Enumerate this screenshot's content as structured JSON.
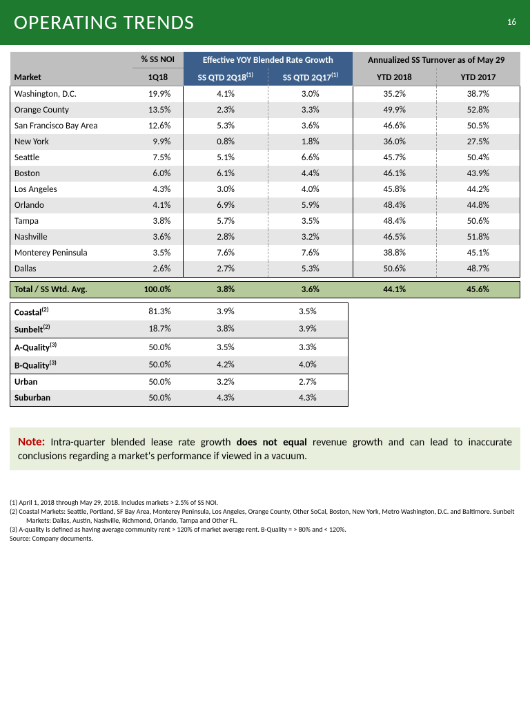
{
  "header": {
    "title": "OPERATING TRENDS",
    "page": "16"
  },
  "table": {
    "headers": {
      "market": "Market",
      "ssnoi": "% SS NOI",
      "ssnoi_sub": "1Q18",
      "blended_group": "Effective YOY Blended Rate Growth",
      "q2_18": "SS QTD 2Q18",
      "q2_17": "SS QTD 2Q17",
      "turnover_group": "Annualized SS Turnover as of May 29",
      "ytd18": "YTD 2018",
      "ytd17": "YTD 2017",
      "sup1": "(1)"
    },
    "rows": [
      {
        "m": "Washington, D.C.",
        "noi": "19.9%",
        "q18": "4.1%",
        "q17": "3.0%",
        "y18": "35.2%",
        "y17": "38.7%"
      },
      {
        "m": "Orange County",
        "noi": "13.5%",
        "q18": "2.3%",
        "q17": "3.3%",
        "y18": "49.9%",
        "y17": "52.8%"
      },
      {
        "m": "San Francisco Bay Area",
        "noi": "12.6%",
        "q18": "5.3%",
        "q17": "3.6%",
        "y18": "46.6%",
        "y17": "50.5%"
      },
      {
        "m": "New York",
        "noi": "9.9%",
        "q18": "0.8%",
        "q17": "1.8%",
        "y18": "36.0%",
        "y17": "27.5%"
      },
      {
        "m": "Seattle",
        "noi": "7.5%",
        "q18": "5.1%",
        "q17": "6.6%",
        "y18": "45.7%",
        "y17": "50.4%"
      },
      {
        "m": "Boston",
        "noi": "6.0%",
        "q18": "6.1%",
        "q17": "4.4%",
        "y18": "46.1%",
        "y17": "43.9%"
      },
      {
        "m": "Los Angeles",
        "noi": "4.3%",
        "q18": "3.0%",
        "q17": "4.0%",
        "y18": "45.8%",
        "y17": "44.2%"
      },
      {
        "m": "Orlando",
        "noi": "4.1%",
        "q18": "6.9%",
        "q17": "5.9%",
        "y18": "48.4%",
        "y17": "44.8%"
      },
      {
        "m": "Tampa",
        "noi": "3.8%",
        "q18": "5.7%",
        "q17": "3.5%",
        "y18": "48.4%",
        "y17": "50.6%"
      },
      {
        "m": "Nashville",
        "noi": "3.6%",
        "q18": "2.8%",
        "q17": "3.2%",
        "y18": "46.5%",
        "y17": "51.8%"
      },
      {
        "m": "Monterey Peninsula",
        "noi": "3.5%",
        "q18": "7.6%",
        "q17": "7.6%",
        "y18": "38.8%",
        "y17": "45.1%"
      },
      {
        "m": "Dallas",
        "noi": "2.6%",
        "q18": "2.7%",
        "q17": "5.3%",
        "y18": "50.6%",
        "y17": "48.7%"
      }
    ],
    "total": {
      "m": "Total / SS Wtd. Avg.",
      "noi": "100.0%",
      "q18": "3.8%",
      "q17": "3.6%",
      "y18": "44.1%",
      "y17": "45.6%"
    },
    "secondary": [
      {
        "m": "Coastal",
        "sup": "(2)",
        "noi": "81.3%",
        "q18": "3.9%",
        "q17": "3.5%",
        "sep": false
      },
      {
        "m": "Sunbelt",
        "sup": "(2)",
        "noi": "18.7%",
        "q18": "3.8%",
        "q17": "3.9%",
        "sep": true
      },
      {
        "m": "A-Quality",
        "sup": "(3)",
        "noi": "50.0%",
        "q18": "3.5%",
        "q17": "3.3%",
        "sep": false
      },
      {
        "m": "B-Quality",
        "sup": "(3)",
        "noi": "50.0%",
        "q18": "4.2%",
        "q17": "4.0%",
        "sep": true
      },
      {
        "m": "Urban",
        "sup": "",
        "noi": "50.0%",
        "q18": "3.2%",
        "q17": "2.7%",
        "sep": false
      },
      {
        "m": "Suburban",
        "sup": "",
        "noi": "50.0%",
        "q18": "4.3%",
        "q17": "4.3%",
        "sep": false
      }
    ]
  },
  "note": {
    "label": "Note:",
    "pre": " Intra-quarter blended lease rate growth ",
    "em": "does not equal",
    "post": " revenue growth and can lead to inaccurate conclusions regarding a market's performance if viewed in a vacuum."
  },
  "footnotes": {
    "f1": "(1)   April 1, 2018 through May 29, 2018. Includes markets > 2.5% of SS NOI.",
    "f2": "(2)   Coastal Markets: Seattle, Portland, SF Bay Area, Monterey Peninsula, Los Angeles, Orange County, Other SoCal, Boston, New York, Metro Washington, D.C. and Baltimore.  Sunbelt Markets: Dallas, Austin, Nashville, Richmond, Orlando, Tampa and Other FL.",
    "f3": "(3)   A-quality is defined as having average community rent > 120% of market average rent.  B-Quality = > 80% and < 120%.",
    "src": "Source:  Company documents."
  }
}
